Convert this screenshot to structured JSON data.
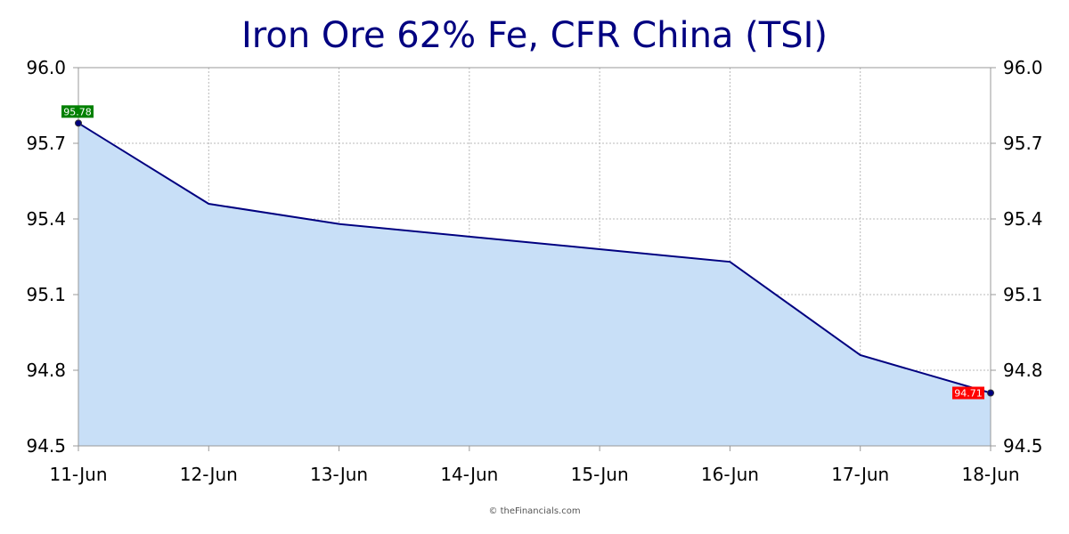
{
  "chart_data": {
    "type": "area",
    "title": "Iron Ore 62% Fe, CFR China (TSI)",
    "categories": [
      "11-Jun",
      "12-Jun",
      "13-Jun",
      "14-Jun",
      "15-Jun",
      "16-Jun",
      "17-Jun",
      "18-Jun"
    ],
    "values": [
      95.78,
      95.46,
      95.38,
      95.33,
      95.28,
      95.23,
      94.86,
      94.71
    ],
    "ylim": [
      94.5,
      96.0
    ],
    "y_ticks": [
      94.5,
      94.8,
      95.1,
      95.4,
      95.7,
      96.0
    ],
    "y_tick_labels": [
      "94.5",
      "94.8",
      "95.1",
      "95.4",
      "95.7",
      "96.0"
    ],
    "y_axis_sides": "both",
    "grid": true,
    "line_color": "#000080",
    "fill_color": "#c8dff7",
    "annotations": [
      {
        "label": "95.78",
        "category": "11-Jun",
        "value": 95.78,
        "color": "#008000"
      },
      {
        "label": "94.71",
        "category": "18-Jun",
        "value": 94.71,
        "color": "#ff0000"
      }
    ]
  },
  "footer": {
    "copyright": "© theFinancials.com"
  }
}
